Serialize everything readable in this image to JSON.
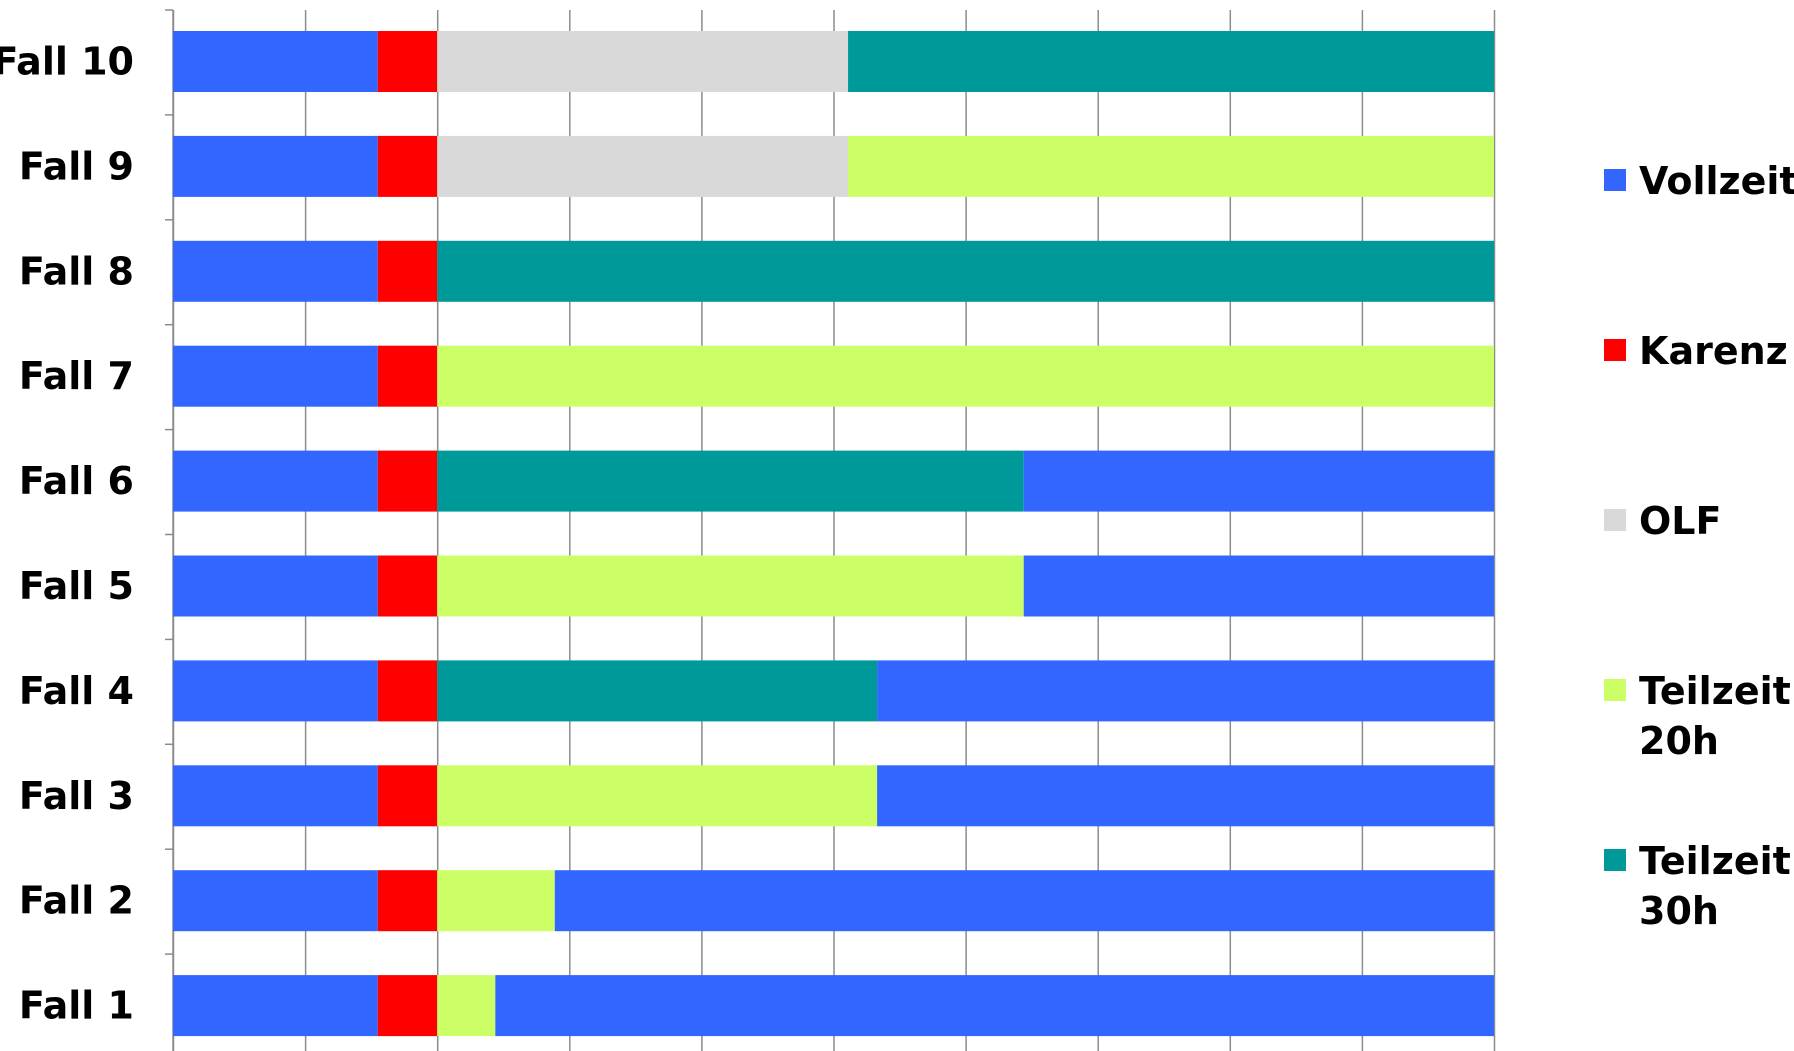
{
  "chart_data": {
    "type": "bar",
    "orientation": "horizontal",
    "stacked": true,
    "title": "",
    "xlabel": "",
    "ylabel": "",
    "xlim": [
      0,
      10
    ],
    "x_tick_count": 10,
    "x_tick_labels_shown": false,
    "grid": "vertical",
    "legend_position": "right",
    "categories": [
      "Fall 10",
      "Fall 9",
      "Fall 8",
      "Fall 7",
      "Fall 6",
      "Fall 5",
      "Fall 4",
      "Fall 3",
      "Fall 2",
      "Fall 1"
    ],
    "series": [
      {
        "name": "Vollzeit",
        "color": "#3366ff"
      },
      {
        "name": "Karenz",
        "color": "#ff0000"
      },
      {
        "name": "OLF",
        "color": "#d9d9d9"
      },
      {
        "name": "Teilzeit 20h",
        "color": "#ccff66"
      },
      {
        "name": "Teilzeit 30h",
        "color": "#009999"
      }
    ],
    "rows": [
      [
        {
          "series": "Vollzeit",
          "value": 1.55
        },
        {
          "series": "Karenz",
          "value": 0.45
        },
        {
          "series": "OLF",
          "value": 3.11
        },
        {
          "series": "Teilzeit 30h",
          "value": 4.89
        }
      ],
      [
        {
          "series": "Vollzeit",
          "value": 1.55
        },
        {
          "series": "Karenz",
          "value": 0.45
        },
        {
          "series": "OLF",
          "value": 3.11
        },
        {
          "series": "Teilzeit 20h",
          "value": 4.89
        }
      ],
      [
        {
          "series": "Vollzeit",
          "value": 1.55
        },
        {
          "series": "Karenz",
          "value": 0.45
        },
        {
          "series": "Teilzeit 30h",
          "value": 8.0
        }
      ],
      [
        {
          "series": "Vollzeit",
          "value": 1.55
        },
        {
          "series": "Karenz",
          "value": 0.45
        },
        {
          "series": "Teilzeit 20h",
          "value": 8.0
        }
      ],
      [
        {
          "series": "Vollzeit",
          "value": 1.55
        },
        {
          "series": "Karenz",
          "value": 0.45
        },
        {
          "series": "Teilzeit 30h",
          "value": 4.44
        },
        {
          "series": "Vollzeit",
          "value": 3.56
        }
      ],
      [
        {
          "series": "Vollzeit",
          "value": 1.55
        },
        {
          "series": "Karenz",
          "value": 0.45
        },
        {
          "series": "Teilzeit 20h",
          "value": 4.44
        },
        {
          "series": "Vollzeit",
          "value": 3.56
        }
      ],
      [
        {
          "series": "Vollzeit",
          "value": 1.55
        },
        {
          "series": "Karenz",
          "value": 0.45
        },
        {
          "series": "Teilzeit 30h",
          "value": 3.33
        },
        {
          "series": "Vollzeit",
          "value": 4.67
        }
      ],
      [
        {
          "series": "Vollzeit",
          "value": 1.55
        },
        {
          "series": "Karenz",
          "value": 0.45
        },
        {
          "series": "Teilzeit 20h",
          "value": 3.33
        },
        {
          "series": "Vollzeit",
          "value": 4.67
        }
      ],
      [
        {
          "series": "Vollzeit",
          "value": 1.55
        },
        {
          "series": "Karenz",
          "value": 0.45
        },
        {
          "series": "Teilzeit 20h",
          "value": 0.89
        },
        {
          "series": "Vollzeit",
          "value": 7.11
        }
      ],
      [
        {
          "series": "Vollzeit",
          "value": 1.55
        },
        {
          "series": "Karenz",
          "value": 0.45
        },
        {
          "series": "Teilzeit 20h",
          "value": 0.44
        },
        {
          "series": "Vollzeit",
          "value": 7.56
        }
      ]
    ]
  }
}
